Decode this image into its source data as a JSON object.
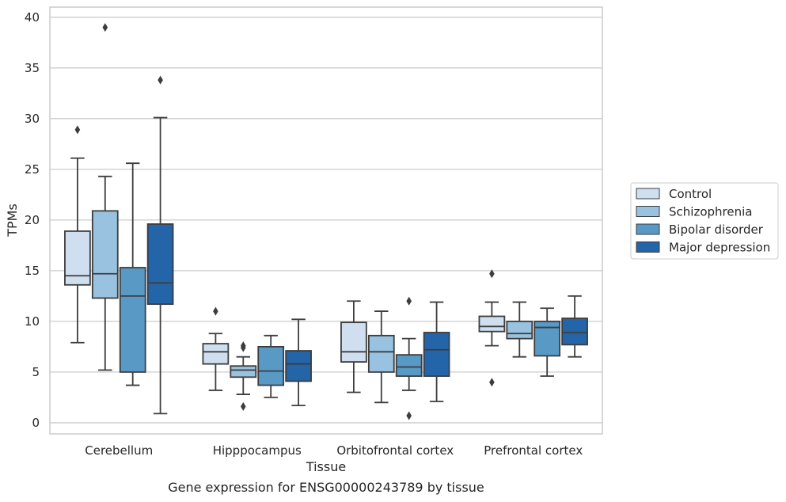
{
  "caption": "Gene expression for ENSG00000243789 by tissue",
  "chart_data": {
    "type": "boxplot",
    "title": "",
    "xlabel": "Tissue",
    "ylabel": "TPMs",
    "ylim": [
      -1.1,
      41
    ],
    "yticks": [
      0,
      5,
      10,
      15,
      20,
      25,
      30,
      35,
      40
    ],
    "grid": "horizontal",
    "legend_position": "right",
    "categories": [
      "Cerebellum",
      "Hipppocampus",
      "Orbitofrontal cortex",
      "Prefrontal cortex"
    ],
    "series": [
      {
        "name": "Control",
        "color": "#d0dff0",
        "boxes": [
          {
            "whislo": 7.9,
            "q1": 13.6,
            "med": 14.5,
            "q3": 18.9,
            "whishi": 26.1,
            "fliers": [
              28.9
            ]
          },
          {
            "whislo": 3.2,
            "q1": 5.8,
            "med": 7.0,
            "q3": 7.8,
            "whishi": 8.8,
            "fliers": [
              11.0
            ]
          },
          {
            "whislo": 3.0,
            "q1": 6.0,
            "med": 7.0,
            "q3": 9.9,
            "whishi": 12.0,
            "fliers": []
          },
          {
            "whislo": 7.6,
            "q1": 9.0,
            "med": 9.5,
            "q3": 10.5,
            "whishi": 11.9,
            "fliers": [
              14.7,
              4.0
            ]
          }
        ]
      },
      {
        "name": "Schizophrenia",
        "color": "#98c2df",
        "boxes": [
          {
            "whislo": 5.2,
            "q1": 12.3,
            "med": 14.7,
            "q3": 20.9,
            "whishi": 24.3,
            "fliers": [
              39.0
            ]
          },
          {
            "whislo": 2.8,
            "q1": 4.5,
            "med": 5.2,
            "q3": 5.6,
            "whishi": 6.5,
            "fliers": [
              7.6,
              7.4,
              1.6
            ]
          },
          {
            "whislo": 2.0,
            "q1": 5.0,
            "med": 7.0,
            "q3": 8.6,
            "whishi": 11.0,
            "fliers": []
          },
          {
            "whislo": 6.5,
            "q1": 8.3,
            "med": 8.8,
            "q3": 10.0,
            "whishi": 11.9,
            "fliers": []
          }
        ]
      },
      {
        "name": "Bipolar disorder",
        "color": "#5899c6",
        "boxes": [
          {
            "whislo": 3.7,
            "q1": 5.0,
            "med": 12.5,
            "q3": 15.3,
            "whishi": 25.6,
            "fliers": []
          },
          {
            "whislo": 2.5,
            "q1": 3.7,
            "med": 5.1,
            "q3": 7.5,
            "whishi": 8.6,
            "fliers": []
          },
          {
            "whislo": 3.2,
            "q1": 4.6,
            "med": 5.5,
            "q3": 6.7,
            "whishi": 8.3,
            "fliers": [
              12.0,
              0.7
            ]
          },
          {
            "whislo": 4.6,
            "q1": 6.6,
            "med": 9.4,
            "q3": 10.0,
            "whishi": 11.3,
            "fliers": []
          }
        ]
      },
      {
        "name": "Major depression",
        "color": "#2464a8",
        "boxes": [
          {
            "whislo": 0.9,
            "q1": 11.7,
            "med": 13.8,
            "q3": 19.6,
            "whishi": 30.1,
            "fliers": [
              33.8
            ]
          },
          {
            "whislo": 1.7,
            "q1": 4.1,
            "med": 5.8,
            "q3": 7.1,
            "whishi": 10.2,
            "fliers": []
          },
          {
            "whislo": 2.1,
            "q1": 4.6,
            "med": 7.2,
            "q3": 8.9,
            "whishi": 11.9,
            "fliers": []
          },
          {
            "whislo": 6.5,
            "q1": 7.7,
            "med": 8.9,
            "q3": 10.3,
            "whishi": 12.5,
            "fliers": []
          }
        ]
      }
    ]
  }
}
